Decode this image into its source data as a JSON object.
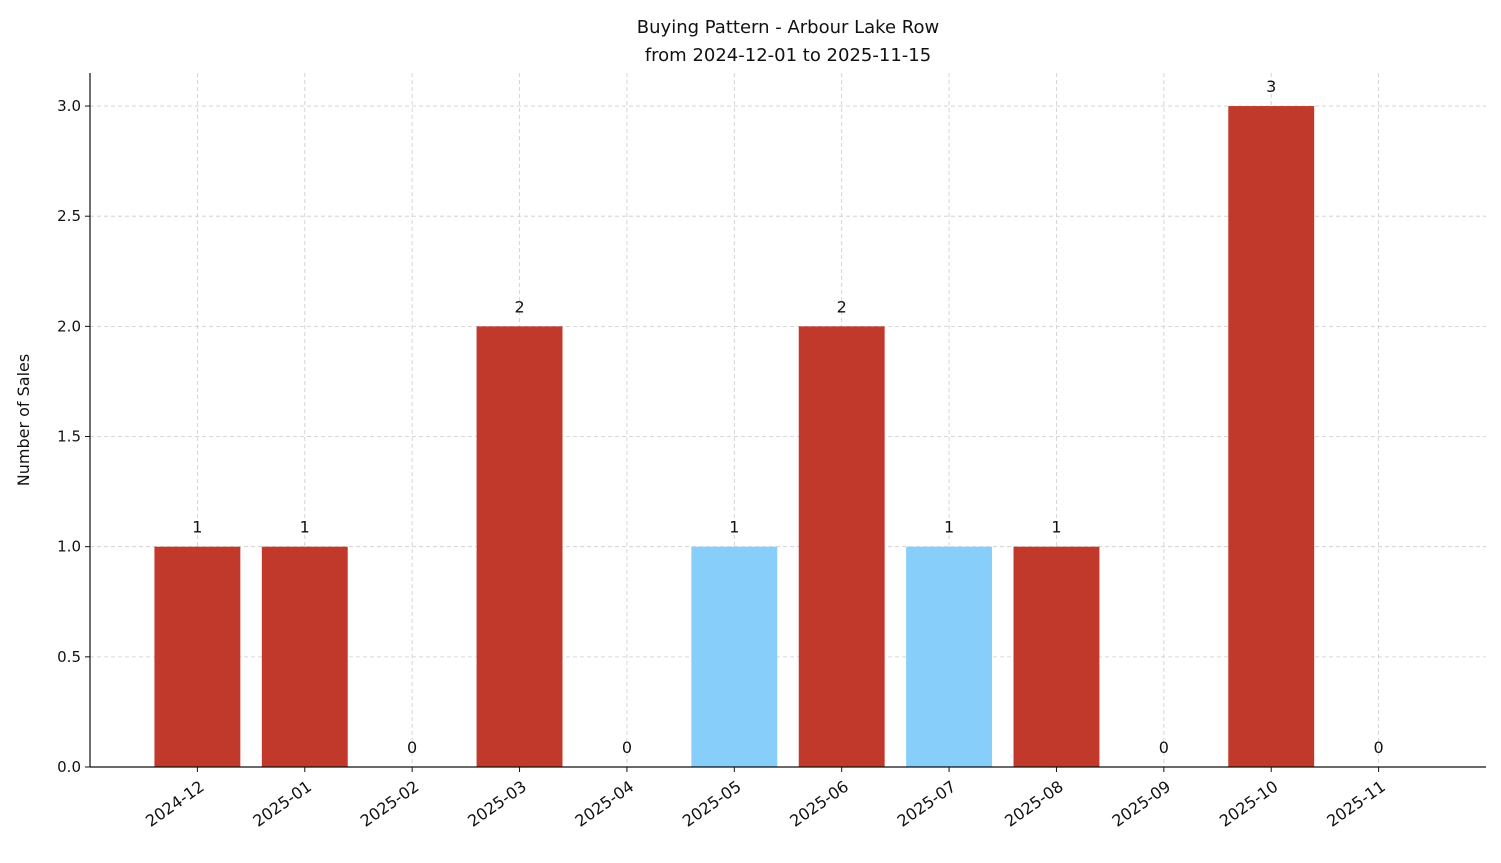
{
  "chart_data": {
    "type": "bar",
    "title": "Buying Pattern - Arbour Lake Row",
    "subtitle": "from 2024-12-01 to 2025-11-15",
    "y_label": "Number of Sales",
    "categories": [
      "2024-12",
      "2025-01",
      "2025-02",
      "2025-03",
      "2025-04",
      "2025-05",
      "2025-06",
      "2025-07",
      "2025-08",
      "2025-09",
      "2025-10",
      "2025-11"
    ],
    "values": [
      1,
      1,
      0,
      2,
      0,
      1,
      2,
      1,
      1,
      0,
      3,
      0
    ],
    "colors": [
      "#c0392b",
      "#c0392b",
      "#c0392b",
      "#c0392b",
      "#c0392b",
      "#87cefa",
      "#c0392b",
      "#87cefa",
      "#c0392b",
      "#c0392b",
      "#c0392b",
      "#c0392b"
    ],
    "ylim": [
      0,
      3.15
    ],
    "yticks": [
      {
        "value": 0,
        "label": "0.0"
      },
      {
        "value": 0.5,
        "label": "0.5"
      },
      {
        "value": 1,
        "label": "1.0"
      },
      {
        "value": 1.5,
        "label": "1.5"
      },
      {
        "value": 2,
        "label": "2.0"
      },
      {
        "value": 2.5,
        "label": "2.5"
      },
      {
        "value": 3,
        "label": "3.0"
      }
    ],
    "grid": true
  }
}
